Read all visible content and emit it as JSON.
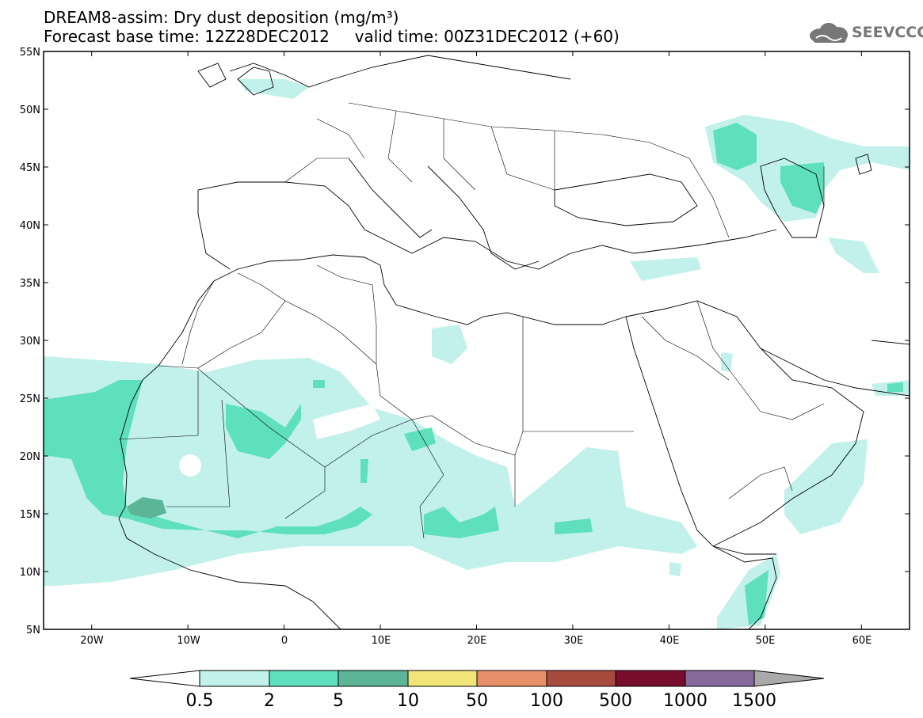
{
  "title": {
    "line1": "DREAM8-assim: Dry dust deposition (mg/m³)",
    "line2_base": "Forecast base time: 12Z28DEC2012",
    "line2_valid": "valid time: 00Z31DEC2012 (+60)"
  },
  "logo": {
    "text": "SEEVCCC",
    "icon": "cloud-icon"
  },
  "axes": {
    "lat_labels": [
      "55N",
      "50N",
      "45N",
      "40N",
      "35N",
      "30N",
      "25N",
      "20N",
      "15N",
      "10N",
      "5N"
    ],
    "lat_values": [
      55,
      50,
      45,
      40,
      35,
      30,
      25,
      20,
      15,
      10,
      5
    ],
    "lon_labels": [
      "20W",
      "10W",
      "0",
      "10E",
      "20E",
      "30E",
      "40E",
      "50E",
      "60E"
    ],
    "lon_values": [
      -20,
      -10,
      0,
      10,
      20,
      30,
      40,
      50,
      60
    ],
    "lon_range": [
      -25,
      65
    ],
    "lat_range": [
      5,
      55
    ]
  },
  "colorbar": {
    "labels": [
      "0.5",
      "2",
      "5",
      "10",
      "50",
      "100",
      "500",
      "1000",
      "1500"
    ],
    "colors": [
      "#ffffff",
      "#c1f1ea",
      "#5ee0bd",
      "#5bb596",
      "#f1e57a",
      "#e88f69",
      "#a84b3f",
      "#760e2c",
      "#876a9c",
      "#a9a9a9"
    ]
  }
}
